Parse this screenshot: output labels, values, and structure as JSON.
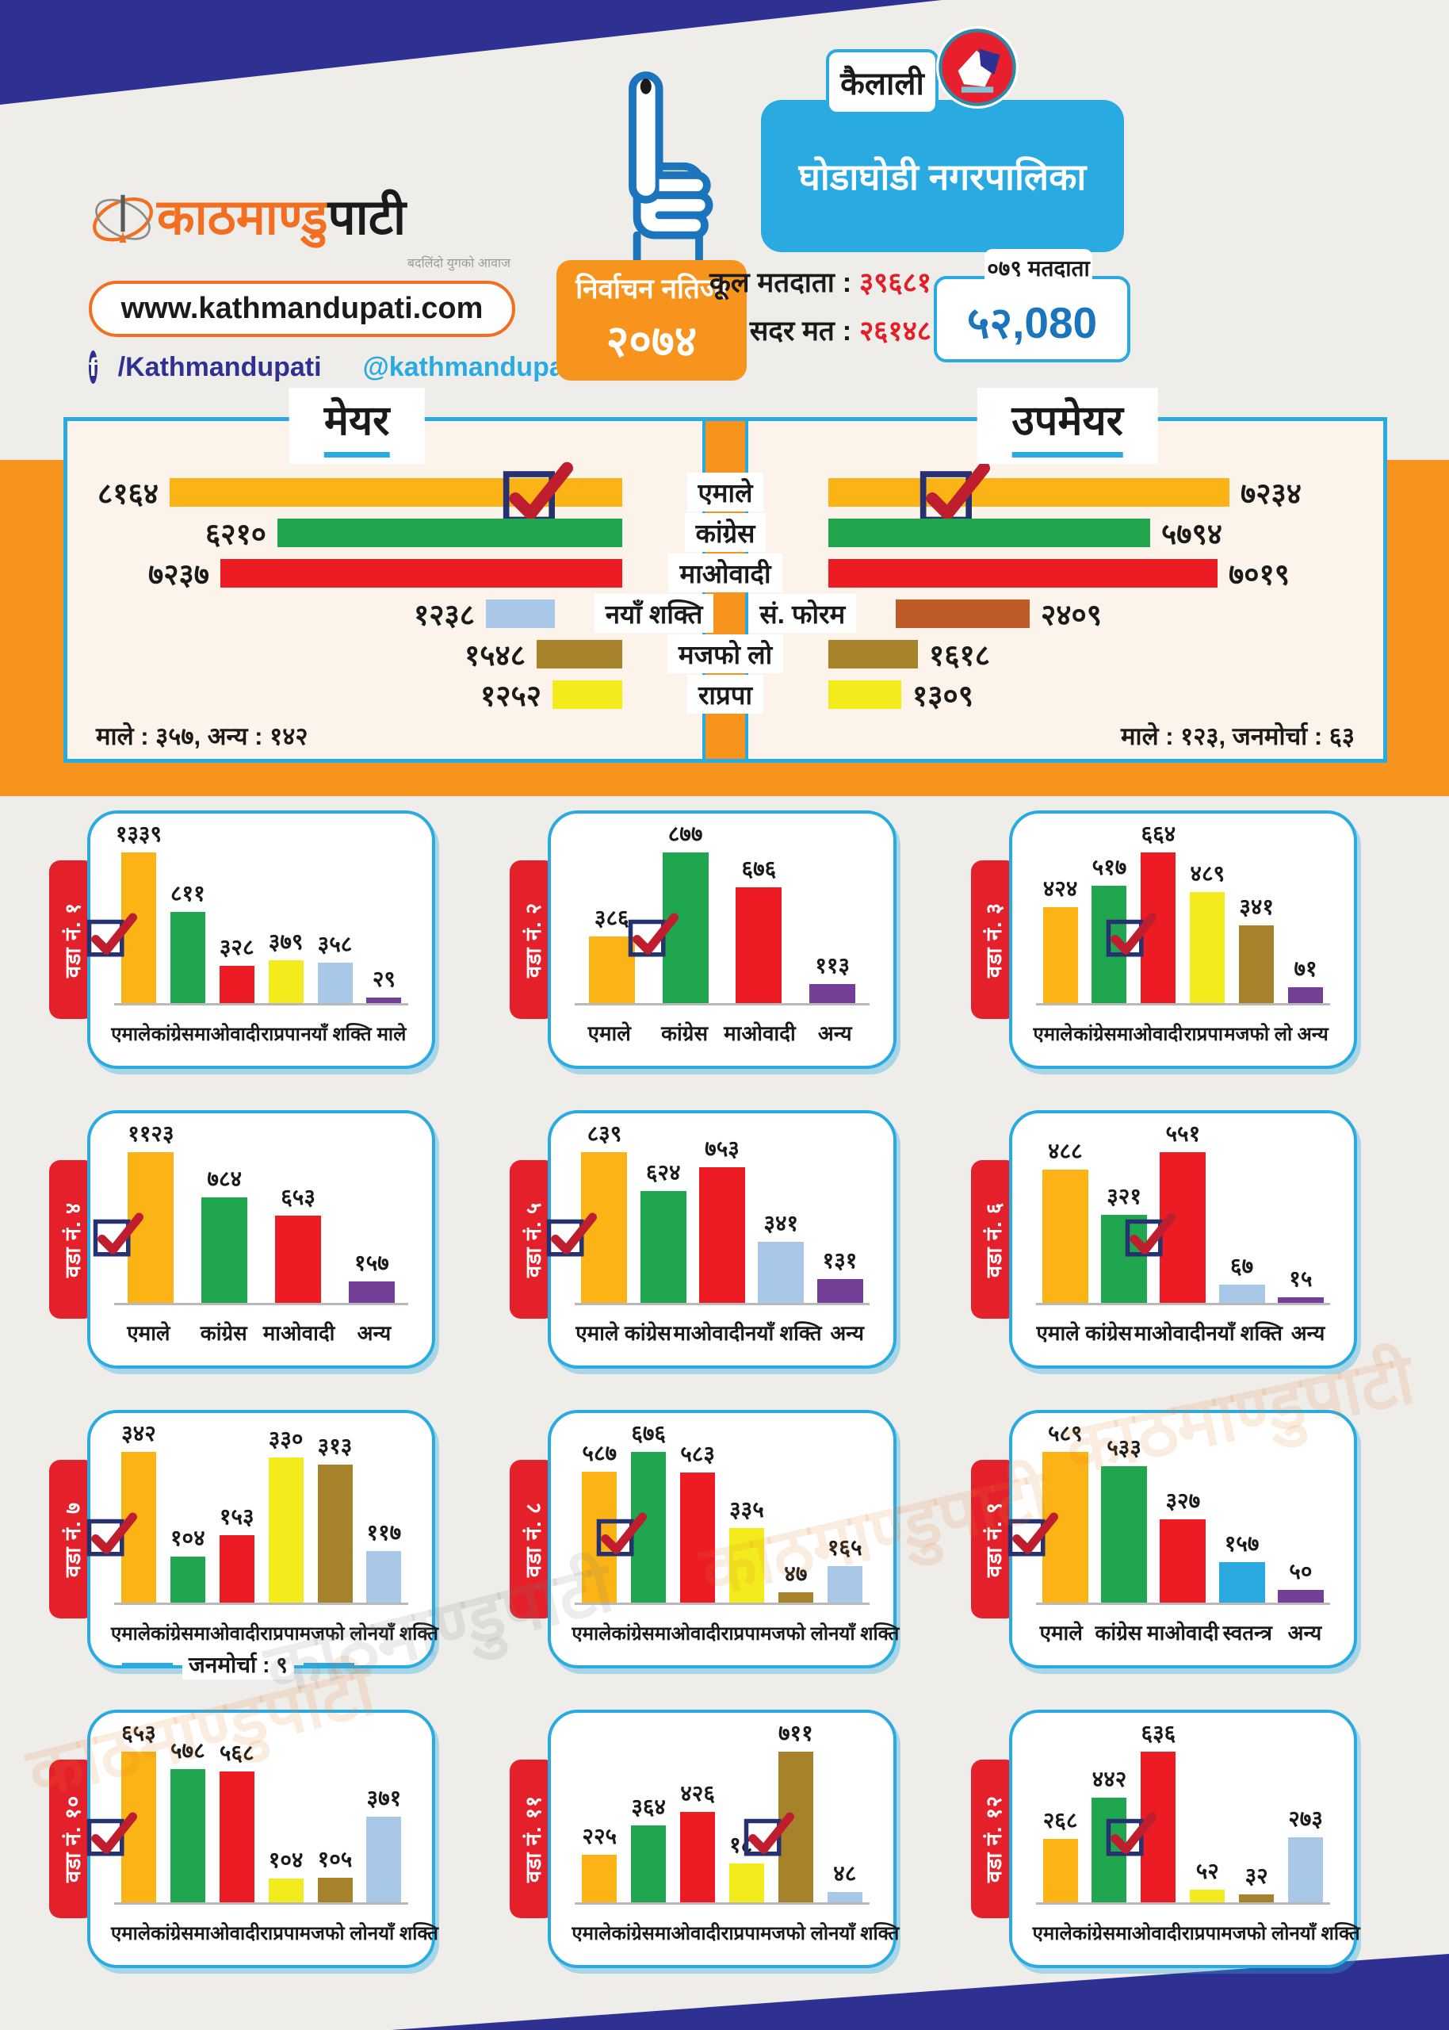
{
  "header": {
    "brand": {
      "logo_part1": "काठमाण्डु",
      "logo_part2": "पाटी",
      "tagline": "बदलिंदो युगको आवाज",
      "url": "www.kathmandupati.com",
      "facebook": "/Kathmandupati",
      "twitter": "@kathmandupati1"
    },
    "result_badge_line1": "निर्वाचन नतिजा",
    "result_badge_line2": "२०७४",
    "district": "कैलाली",
    "municipality": "घोडाघोडी नगरपालिका",
    "total_voters_label": "कूल मतदाता",
    "total_voters_value": "३९६८१",
    "valid_votes_label": "सदर मत",
    "valid_votes_value": "२६१४८",
    "voters_note": "०७९ मतदाता",
    "voters_total": "५२,080"
  },
  "watermark": "काठमाण्डुपाटी",
  "party_colors": {
    "emale": "#FBB315",
    "congress": "#21A650",
    "maoist": "#EC1B24",
    "rapraa": "#F3EB1C",
    "naya": "#A9C7E6",
    "majfo": "#A6832B",
    "male": "#733F97",
    "anya": "#733F97",
    "forum": "#BF5B28",
    "swatantra": "#2AA9E1"
  },
  "accent_colors": {
    "navy": "#2E3192",
    "cyan": "#29ABE2",
    "orange": "#F7941D",
    "badge_red": "#E4202B",
    "value_red": "#E31E26",
    "total_blue": "#1B75BC"
  },
  "chart_data": [
    {
      "type": "bar",
      "orientation": "horizontal",
      "title": "मेयर",
      "categories": [
        "एमाले",
        "कांग्रेस",
        "माओवादी",
        "नयाँ शक्ति",
        "मजफो लो",
        "राप्रपा"
      ],
      "values": [
        8164,
        6210,
        7237,
        1238,
        1548,
        1252
      ],
      "value_labels": [
        "८१६४",
        "६२१०",
        "७२३७",
        "१२३८",
        "१५४८",
        "१२५२"
      ],
      "colors": [
        "emale",
        "congress",
        "maoist",
        "naya",
        "majfo",
        "rapraa"
      ],
      "winner_index": 0,
      "footnote": "माले : ३५७, अन्य : १४२"
    },
    {
      "type": "bar",
      "orientation": "horizontal",
      "title": "उपमेयर",
      "categories": [
        "एमाले",
        "कांग्रेस",
        "माओवादी",
        "सं. फोरम",
        "मजफो लो",
        "राप्रपा"
      ],
      "values": [
        7234,
        5794,
        7019,
        2409,
        1618,
        1309
      ],
      "value_labels": [
        "७२३४",
        "५७९४",
        "७०१९",
        "२४०९",
        "१६१८",
        "१३०९"
      ],
      "colors": [
        "emale",
        "congress",
        "maoist",
        "forum",
        "majfo",
        "rapraa"
      ],
      "winner_index": 0,
      "footnote": "माले : १२३, जनमोर्चा : ६३"
    },
    {
      "type": "bar",
      "orientation": "vertical",
      "badge": "वडा नं. १",
      "categories": [
        "एमाले",
        "कांग्रेस",
        "माओवादी",
        "राप्रपा",
        "नयाँ शक्ति",
        "माले"
      ],
      "values": [
        1339,
        811,
        328,
        379,
        358,
        29
      ],
      "value_labels": [
        "१३३९",
        "८११",
        "३२८",
        "३७९",
        "३५८",
        "२९"
      ],
      "colors": [
        "emale",
        "congress",
        "maoist",
        "rapraa",
        "naya",
        "male"
      ],
      "winner_index": 0,
      "footnote": null
    },
    {
      "type": "bar",
      "orientation": "vertical",
      "badge": "वडा नं. २",
      "categories": [
        "एमाले",
        "कांग्रेस",
        "माओवादी",
        "अन्य"
      ],
      "values": [
        386,
        877,
        676,
        113
      ],
      "value_labels": [
        "३८६",
        "८७७",
        "६७६",
        "११३"
      ],
      "colors": [
        "emale",
        "congress",
        "maoist",
        "anya"
      ],
      "winner_index": 1,
      "footnote": null
    },
    {
      "type": "bar",
      "orientation": "vertical",
      "badge": "वडा नं. ३",
      "categories": [
        "एमाले",
        "कांग्रेस",
        "माओवादी",
        "राप्रपा",
        "मजफो लो",
        "अन्य"
      ],
      "values": [
        424,
        517,
        664,
        489,
        341,
        71
      ],
      "value_labels": [
        "४२४",
        "५१७",
        "६६४",
        "४८९",
        "३४१",
        "७१"
      ],
      "colors": [
        "emale",
        "congress",
        "maoist",
        "rapraa",
        "majfo",
        "anya"
      ],
      "winner_index": 2,
      "footnote": null
    },
    {
      "type": "bar",
      "orientation": "vertical",
      "badge": "वडा नं. ४",
      "categories": [
        "एमाले",
        "कांग्रेस",
        "माओवादी",
        "अन्य"
      ],
      "values": [
        1123,
        784,
        653,
        157
      ],
      "value_labels": [
        "११२३",
        "७८४",
        "६५३",
        "१५७"
      ],
      "colors": [
        "emale",
        "congress",
        "maoist",
        "anya"
      ],
      "winner_index": 0,
      "footnote": null
    },
    {
      "type": "bar",
      "orientation": "vertical",
      "badge": "वडा नं. ५",
      "categories": [
        "एमाले",
        "कांग्रेस",
        "माओवादी",
        "नयाँ शक्ति",
        "अन्य"
      ],
      "values": [
        839,
        624,
        753,
        341,
        131
      ],
      "value_labels": [
        "८३९",
        "६२४",
        "७५३",
        "३४१",
        "१३१"
      ],
      "colors": [
        "emale",
        "congress",
        "maoist",
        "naya",
        "anya"
      ],
      "winner_index": 0,
      "footnote": null
    },
    {
      "type": "bar",
      "orientation": "vertical",
      "badge": "वडा नं. ६",
      "categories": [
        "एमाले",
        "कांग्रेस",
        "माओवादी",
        "नयाँ शक्ति",
        "अन्य"
      ],
      "values": [
        488,
        321,
        551,
        67,
        15
      ],
      "value_labels": [
        "४८८",
        "३२१",
        "५५१",
        "६७",
        "१५"
      ],
      "colors": [
        "emale",
        "congress",
        "maoist",
        "naya",
        "anya"
      ],
      "winner_index": 2,
      "footnote": null
    },
    {
      "type": "bar",
      "orientation": "vertical",
      "badge": "वडा नं. ७",
      "categories": [
        "एमाले",
        "कांग्रेस",
        "माओवादी",
        "राप्रपा",
        "मजफो लो",
        "नयाँ शक्ति"
      ],
      "values": [
        342,
        104,
        153,
        330,
        313,
        117
      ],
      "value_labels": [
        "३४२",
        "१०४",
        "१५३",
        "३३०",
        "३१३",
        "११७"
      ],
      "colors": [
        "emale",
        "congress",
        "maoist",
        "rapraa",
        "majfo",
        "naya"
      ],
      "winner_index": 0,
      "footnote": "जनमोर्चा : ९"
    },
    {
      "type": "bar",
      "orientation": "vertical",
      "badge": "वडा नं. ८",
      "categories": [
        "एमाले",
        "कांग्रेस",
        "माओवादी",
        "राप्रपा",
        "मजफो लो",
        "नयाँ शक्ति"
      ],
      "values": [
        587,
        676,
        583,
        335,
        47,
        165
      ],
      "value_labels": [
        "५८७",
        "६७६",
        "५८३",
        "३३५",
        "४७",
        "१६५"
      ],
      "colors": [
        "emale",
        "congress",
        "maoist",
        "rapraa",
        "majfo",
        "naya"
      ],
      "winner_index": 1,
      "footnote": null
    },
    {
      "type": "bar",
      "orientation": "vertical",
      "badge": "वडा नं. ९",
      "categories": [
        "एमाले",
        "कांग्रेस",
        "माओवादी",
        "स्वतन्त्र",
        "अन्य"
      ],
      "values": [
        589,
        533,
        327,
        157,
        50
      ],
      "value_labels": [
        "५८९",
        "५३३",
        "३२७",
        "१५७",
        "५०"
      ],
      "colors": [
        "emale",
        "congress",
        "maoist",
        "swatantra",
        "anya"
      ],
      "winner_index": 0,
      "footnote": null
    },
    {
      "type": "bar",
      "orientation": "vertical",
      "badge": "वडा नं. १०",
      "categories": [
        "एमाले",
        "कांग्रेस",
        "माओवादी",
        "राप्रपा",
        "मजफो लो",
        "नयाँ शक्ति"
      ],
      "values": [
        653,
        578,
        568,
        104,
        105,
        371
      ],
      "value_labels": [
        "६५३",
        "५७८",
        "५६८",
        "१०४",
        "१०५",
        "३७१"
      ],
      "colors": [
        "emale",
        "congress",
        "maoist",
        "rapraa",
        "majfo",
        "naya"
      ],
      "winner_index": 0,
      "footnote": null
    },
    {
      "type": "bar",
      "orientation": "vertical",
      "badge": "वडा नं. ११",
      "categories": [
        "एमाले",
        "कांग्रेस",
        "माओवादी",
        "राप्रपा",
        "मजफो लो",
        "नयाँ शक्ति"
      ],
      "values": [
        225,
        364,
        426,
        185,
        711,
        48
      ],
      "value_labels": [
        "२२५",
        "३६४",
        "४२६",
        "१८५",
        "७११",
        "४८"
      ],
      "colors": [
        "emale",
        "congress",
        "maoist",
        "rapraa",
        "majfo",
        "naya"
      ],
      "winner_index": 4,
      "footnote": null
    },
    {
      "type": "bar",
      "orientation": "vertical",
      "badge": "वडा नं. १२",
      "categories": [
        "एमाले",
        "कांग्रेस",
        "माओवादी",
        "राप्रपा",
        "मजफो लो",
        "नयाँ शक्ति"
      ],
      "values": [
        268,
        442,
        636,
        52,
        32,
        273
      ],
      "value_labels": [
        "२६८",
        "४४२",
        "६३६",
        "५२",
        "३२",
        "२७३"
      ],
      "colors": [
        "emale",
        "congress",
        "maoist",
        "rapraa",
        "majfo",
        "naya"
      ],
      "winner_index": 2,
      "footnote": null
    }
  ]
}
